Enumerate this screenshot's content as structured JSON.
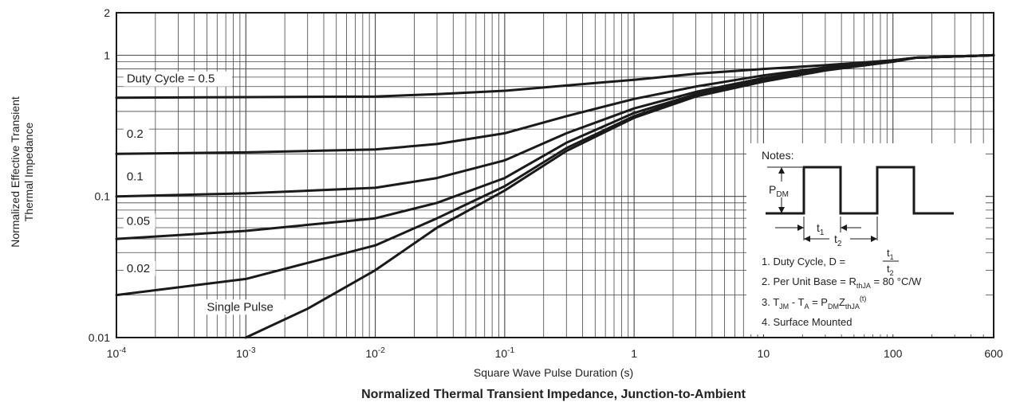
{
  "chart_data": {
    "type": "line",
    "title": "Normalized Thermal Transient Impedance, Junction-to-Ambient",
    "xlabel": "Square Wave Pulse Duration (s)",
    "ylabel_lines": [
      "Normalized Effective Transient",
      "Thermal Impedance"
    ],
    "x_scale": "log",
    "y_scale": "log",
    "xlim": [
      0.0001,
      600
    ],
    "ylim": [
      0.01,
      2
    ],
    "grid": true,
    "x_ticks": [
      {
        "value": 0.0001,
        "base": "10",
        "exp": "-4"
      },
      {
        "value": 0.001,
        "base": "10",
        "exp": "-3"
      },
      {
        "value": 0.01,
        "base": "10",
        "exp": "-2"
      },
      {
        "value": 0.1,
        "base": "10",
        "exp": "-1"
      },
      {
        "value": 1,
        "base": "1",
        "exp": ""
      },
      {
        "value": 10,
        "base": "10",
        "exp": ""
      },
      {
        "value": 100,
        "base": "100",
        "exp": ""
      },
      {
        "value": 600,
        "base": "600",
        "exp": ""
      }
    ],
    "y_ticks": [
      {
        "value": 0.01,
        "label": "0.01"
      },
      {
        "value": 0.1,
        "label": "0.1"
      },
      {
        "value": 1,
        "label": "1"
      },
      {
        "value": 2,
        "label": "2"
      }
    ],
    "series": [
      {
        "name": "Duty Cycle = 0.5",
        "x": [
          0.0001,
          0.001,
          0.01,
          0.03,
          0.1,
          0.3,
          1,
          3,
          10,
          30,
          100,
          150,
          600
        ],
        "y": [
          0.5,
          0.505,
          0.51,
          0.53,
          0.56,
          0.61,
          0.67,
          0.74,
          0.8,
          0.85,
          0.92,
          0.96,
          1.0
        ]
      },
      {
        "name": "0.2",
        "x": [
          0.0001,
          0.001,
          0.01,
          0.03,
          0.1,
          0.3,
          1,
          3,
          10,
          30,
          100,
          150,
          600
        ],
        "y": [
          0.2,
          0.205,
          0.215,
          0.235,
          0.28,
          0.37,
          0.49,
          0.6,
          0.72,
          0.82,
          0.92,
          0.96,
          1.0
        ]
      },
      {
        "name": "0.1",
        "x": [
          0.0001,
          0.001,
          0.01,
          0.03,
          0.1,
          0.3,
          1,
          3,
          10,
          30,
          100,
          150,
          600
        ],
        "y": [
          0.1,
          0.105,
          0.115,
          0.135,
          0.18,
          0.28,
          0.42,
          0.55,
          0.69,
          0.8,
          0.91,
          0.96,
          1.0
        ]
      },
      {
        "name": "0.05",
        "x": [
          0.0001,
          0.001,
          0.01,
          0.03,
          0.1,
          0.3,
          1,
          3,
          10,
          30,
          100,
          150,
          600
        ],
        "y": [
          0.05,
          0.057,
          0.07,
          0.09,
          0.135,
          0.24,
          0.39,
          0.53,
          0.67,
          0.79,
          0.91,
          0.96,
          1.0
        ]
      },
      {
        "name": "0.02",
        "x": [
          0.0001,
          0.001,
          0.01,
          0.03,
          0.1,
          0.3,
          1,
          3,
          10,
          30,
          100,
          150,
          600
        ],
        "y": [
          0.02,
          0.026,
          0.045,
          0.07,
          0.118,
          0.22,
          0.37,
          0.52,
          0.66,
          0.79,
          0.9,
          0.96,
          1.0
        ]
      },
      {
        "name": "Single Pulse",
        "x": [
          0.001,
          0.003,
          0.01,
          0.03,
          0.1,
          0.3,
          1,
          3,
          10,
          30,
          100,
          150,
          600
        ],
        "y": [
          0.01,
          0.016,
          0.03,
          0.06,
          0.11,
          0.21,
          0.36,
          0.51,
          0.65,
          0.78,
          0.9,
          0.96,
          1.0
        ]
      }
    ],
    "curve_labels": [
      {
        "text": "Duty Cycle = 0.5",
        "x": 0.00012,
        "y": 0.64
      },
      {
        "text": "0.2",
        "x": 0.00012,
        "y": 0.26
      },
      {
        "text": "0.1",
        "x": 0.00012,
        "y": 0.13
      },
      {
        "text": "0.05",
        "x": 0.00012,
        "y": 0.063
      },
      {
        "text": "0.02",
        "x": 0.00012,
        "y": 0.029
      },
      {
        "text": "Single Pulse",
        "x": 0.0005,
        "y": 0.0155
      }
    ],
    "notes": {
      "heading": "Notes:",
      "pdm_label": {
        "main": "P",
        "sub": "DM"
      },
      "t1_label": {
        "main": "t",
        "sub": "1"
      },
      "t2_label": {
        "main": "t",
        "sub": "2"
      },
      "note1_prefix": "1. Duty Cycle, D =",
      "note1_num": {
        "main": "t",
        "sub": "1"
      },
      "note1_den": {
        "main": "t",
        "sub": "2"
      },
      "note2_prefix": "2. Per Unit Base = R",
      "note2_sub": "thJA",
      "note2_suffix": " = 80 °C/W",
      "note3": {
        "p1": "3. T",
        "s1": "JM",
        "p2": " - T",
        "s2": "A",
        "p3": " = P",
        "s3": "DM",
        "p4": "Z",
        "s4": "thJA",
        "sup": "(t)"
      },
      "note4": "4. Surface Mounted"
    }
  }
}
